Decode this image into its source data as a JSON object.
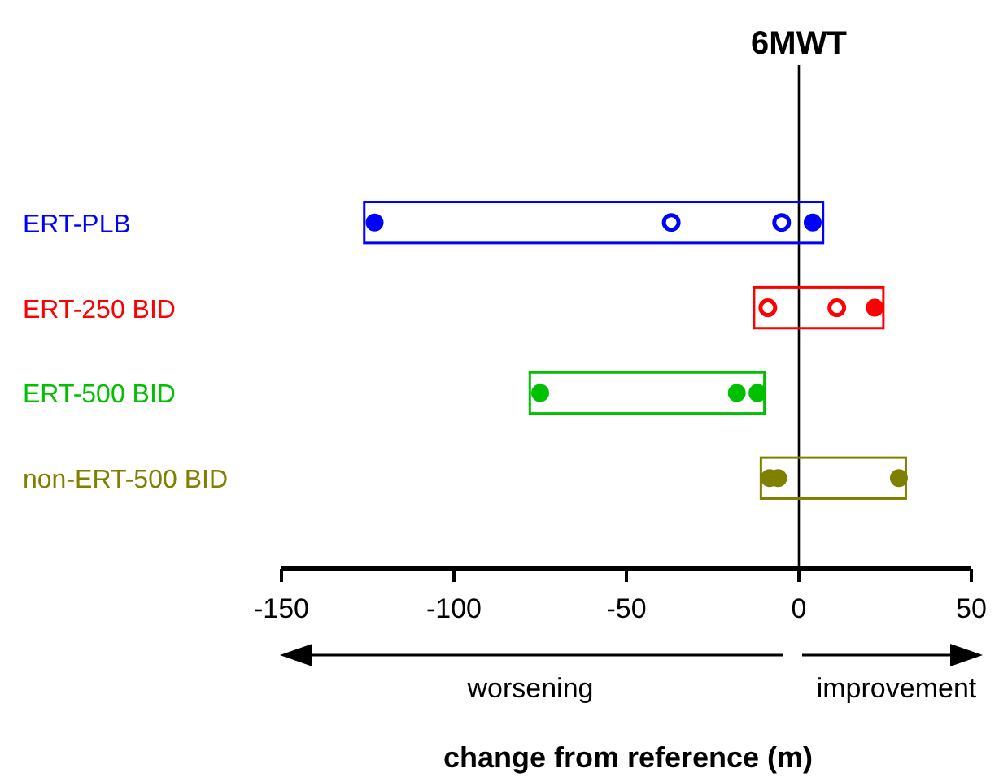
{
  "chart_data": {
    "type": "bar",
    "orientation": "horizontal",
    "title": "6MWT",
    "xlabel": "change from reference (m)",
    "categories": [
      "ERT-PLB",
      "ERT-250 BID",
      "ERT-500 BID",
      "non-ERT-500 BID"
    ],
    "xlim": [
      -150,
      50
    ],
    "xticks": [
      -150,
      -100,
      -50,
      0,
      50
    ],
    "grid": false,
    "series": [
      {
        "colors": [
          "#0000ff",
          "#ff0000",
          "#00c000",
          "#808000"
        ],
        "base": [
          -126,
          -13,
          -78,
          -11
        ],
        "values": [
          133,
          37.5,
          68,
          42
        ]
      },
      {
        "type": "scatter",
        "marker": "circle",
        "x": [
          "ERT-PLB",
          "ERT-PLB",
          "ERT-250 BID",
          "ERT-500 BID",
          "ERT-500 BID",
          "ERT-500 BID",
          "non-ERT-500 BID",
          "non-ERT-500 BID",
          "non-ERT-500 BID"
        ],
        "values": [
          -123,
          4,
          22,
          -75,
          -18,
          -12,
          -6,
          -8.5,
          29
        ],
        "colors": [
          "#0000ff",
          "#0000ff",
          "#ff0000",
          "#00c000",
          "#00c000",
          "#00c000",
          "#808000",
          "#808000",
          "#808000"
        ]
      },
      {
        "type": "scatter",
        "marker": "circle",
        "x": [
          "ERT-PLB",
          "ERT-PLB",
          "ERT-250 BID",
          "ERT-250 BID"
        ],
        "values": [
          -37,
          -5,
          -9,
          11
        ],
        "colors": [
          "#0000ff",
          "#0000ff",
          "#ff0000",
          "#ff0000"
        ]
      }
    ],
    "ref_lines": [
      {
        "axis": "x",
        "value": 0,
        "color": "#000000"
      }
    ],
    "annotations": [
      "worsening",
      "improvement"
    ]
  }
}
